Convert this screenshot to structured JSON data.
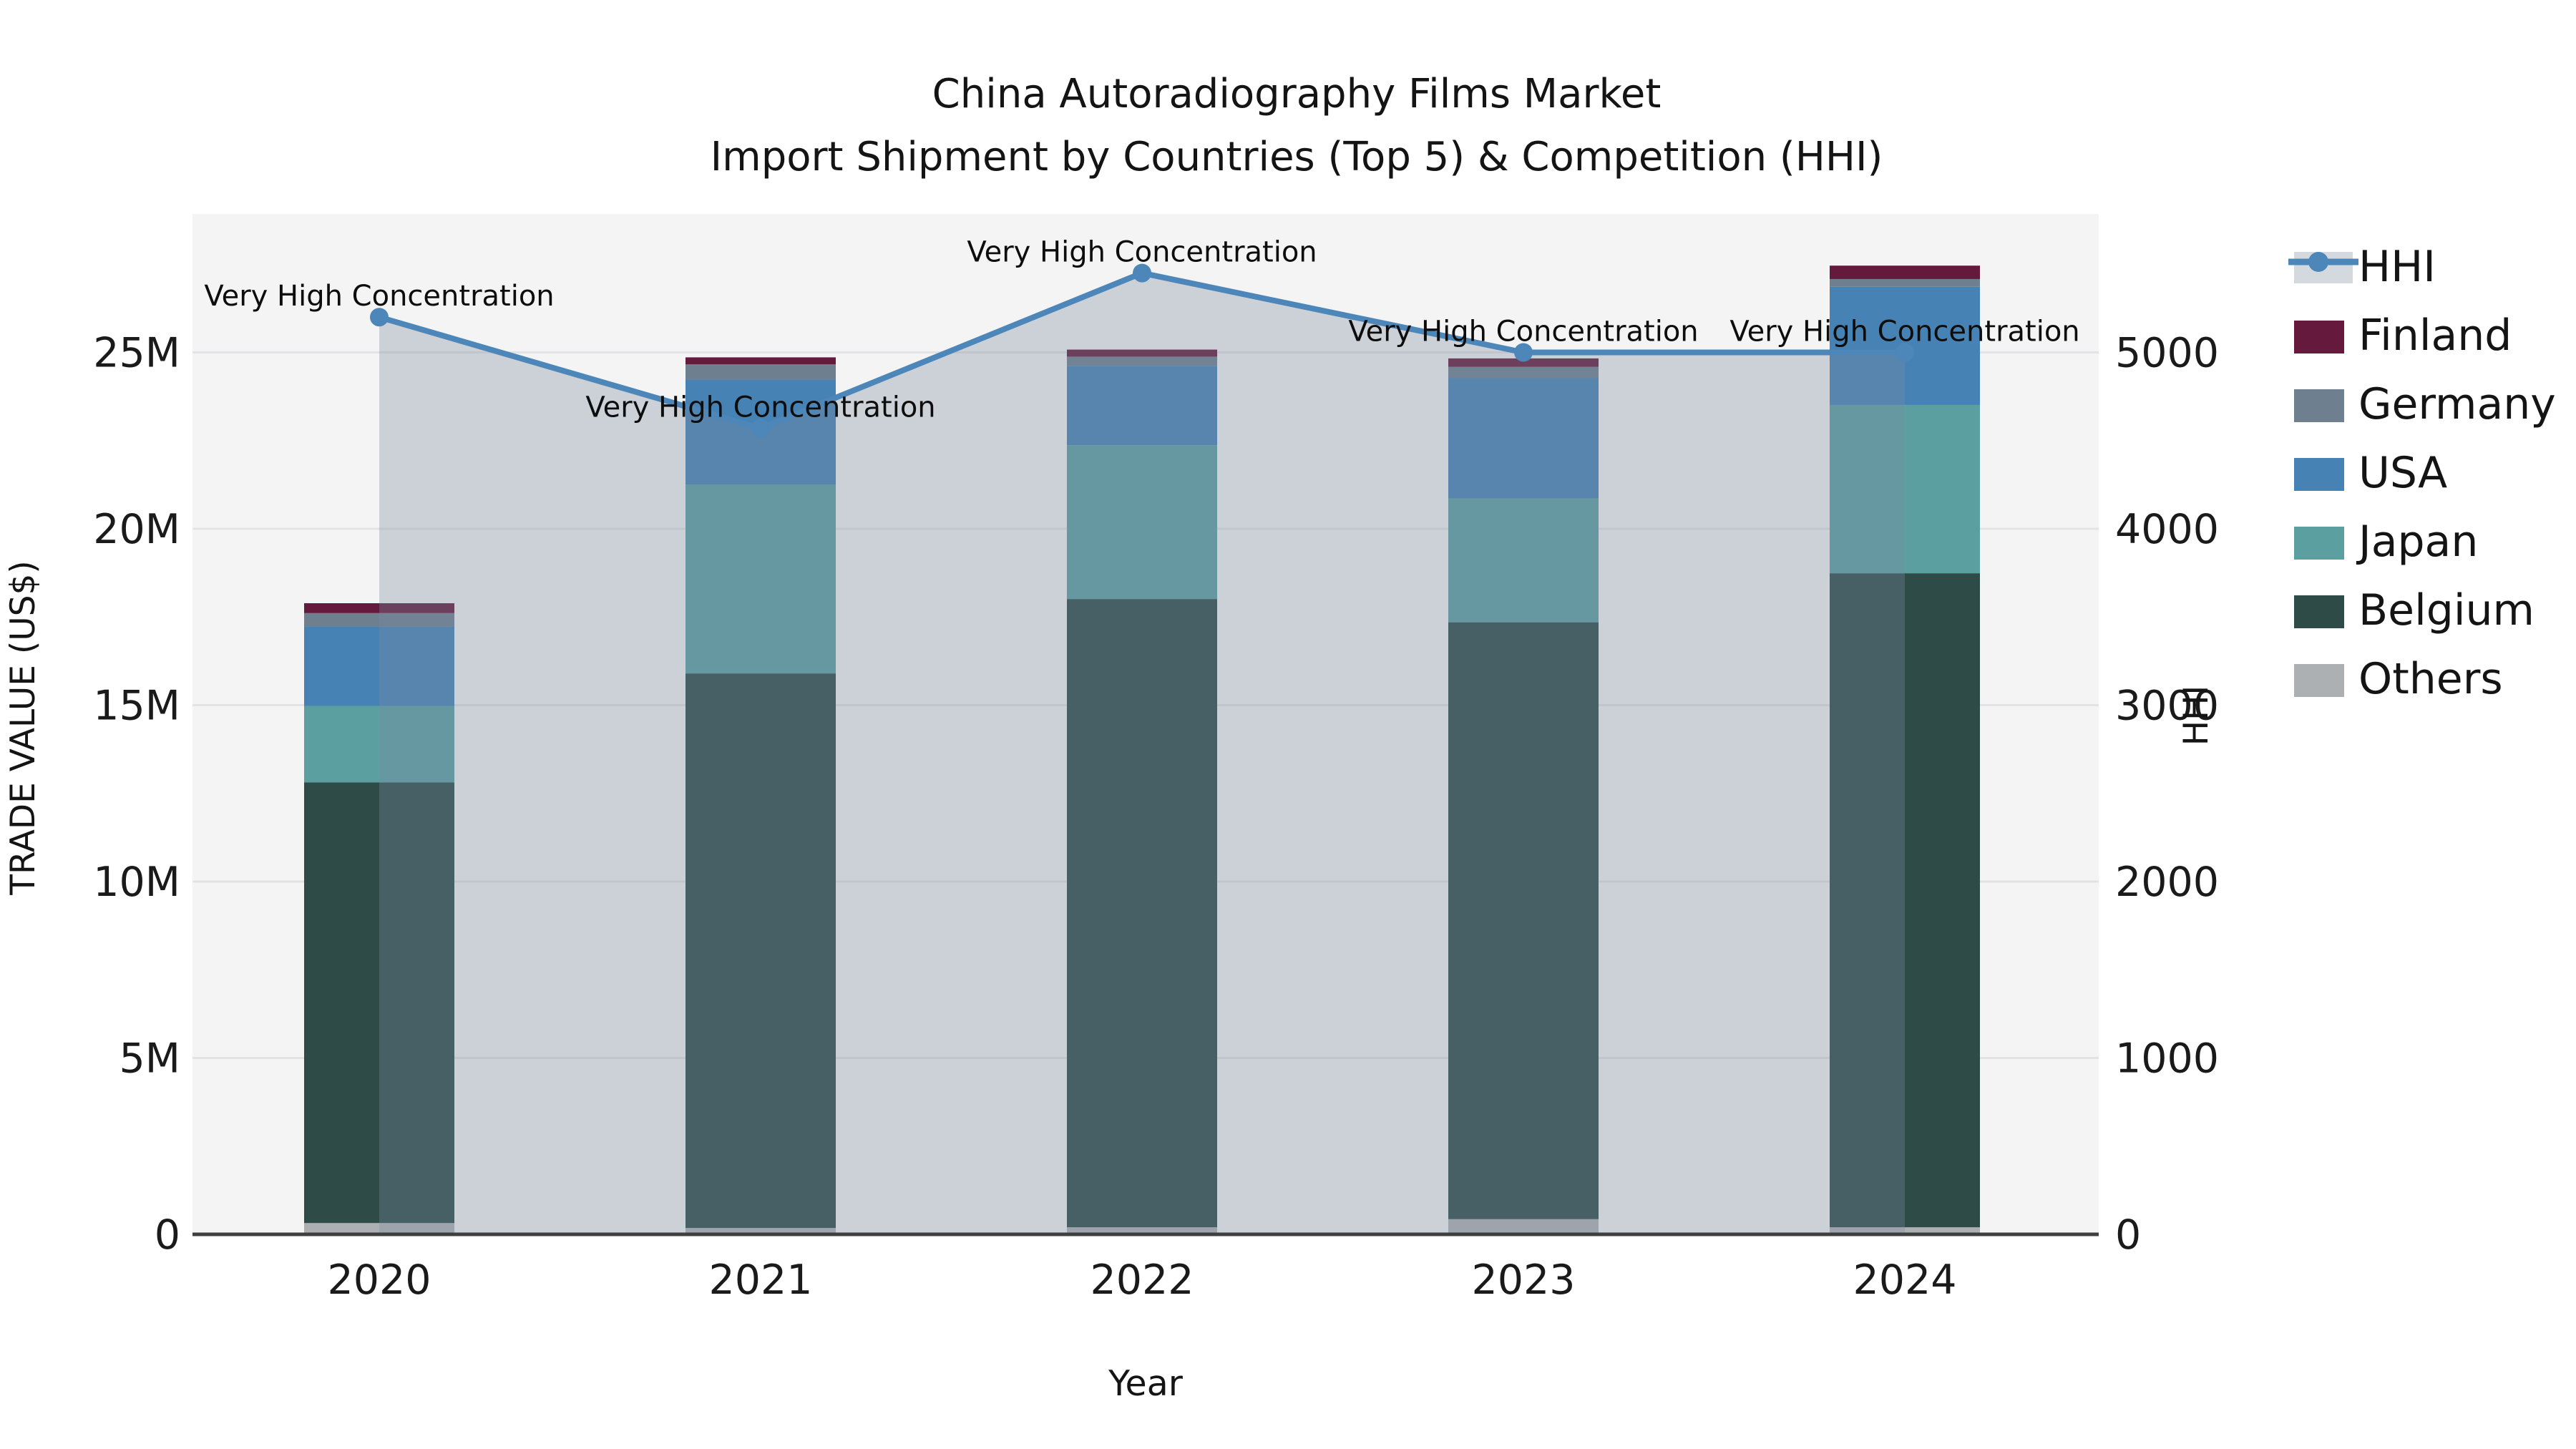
{
  "chart_data": {
    "type": "combo: stacked-bar + line-area (dual axis)",
    "title": "China Autoradiography Films Market",
    "subtitle": "Import Shipment by Countries (Top 5) & Competition (HHI)",
    "xlabel": "Year",
    "ylabel_left": "TRADE VALUE (US$)",
    "ylabel_right": "HHI",
    "categories": [
      "2020",
      "2021",
      "2022",
      "2023",
      "2024"
    ],
    "value_unit": "million US$",
    "stack_order_note": "series listed bottom-to-top of stack",
    "series": [
      {
        "name": "Others",
        "color": "#adb0b2",
        "values": [
          0.32,
          0.18,
          0.2,
          0.43,
          0.2
        ]
      },
      {
        "name": "Belgium",
        "color": "#2e4b48",
        "values": [
          12.49,
          15.72,
          17.81,
          16.92,
          18.54
        ]
      },
      {
        "name": "Japan",
        "color": "#5b9fa1",
        "values": [
          2.17,
          5.35,
          4.36,
          3.51,
          4.77
        ]
      },
      {
        "name": "USA",
        "color": "#4682b4",
        "values": [
          2.25,
          2.98,
          2.25,
          3.41,
          3.35
        ]
      },
      {
        "name": "Germany",
        "color": "#6e7f90",
        "values": [
          0.38,
          0.43,
          0.26,
          0.32,
          0.22
        ]
      },
      {
        "name": "Finland",
        "color": "#651a3d",
        "values": [
          0.28,
          0.2,
          0.2,
          0.24,
          0.38
        ]
      }
    ],
    "totals_m": [
      17.89,
      24.86,
      25.08,
      24.83,
      27.46
    ],
    "hhi": {
      "name": "HHI",
      "line_color": "#4d86b8",
      "area_fill": "rgba(125,140,160,0.33)",
      "values": [
        5200,
        4570,
        5450,
        5000,
        5000
      ]
    },
    "annotations": [
      {
        "year": "2020",
        "label": "Very High Concentration"
      },
      {
        "year": "2021",
        "label": "Very High Concentration"
      },
      {
        "year": "2022",
        "label": "Very High Concentration"
      },
      {
        "year": "2023",
        "label": "Very High Concentration"
      },
      {
        "year": "2024",
        "label": "Very High Concentration"
      }
    ],
    "y_left": {
      "ticks": [
        "0",
        "5M",
        "10M",
        "15M",
        "20M",
        "25M"
      ],
      "lim_m": [
        0,
        29.0
      ]
    },
    "y_right": {
      "ticks": [
        "0",
        "1000",
        "2000",
        "3000",
        "4000",
        "5000"
      ],
      "lim": [
        0,
        5800
      ]
    },
    "legend": {
      "position": "right",
      "items": [
        "HHI",
        "Finland",
        "Germany",
        "USA",
        "Japan",
        "Belgium",
        "Others"
      ]
    },
    "grid": true
  },
  "colors": {
    "plot_bg": "#f4f4f4",
    "grid": "#e3e3e5",
    "axis_line": "#3f3f3f",
    "legend_hhi_swatch": "rgba(125,140,160,0.33)"
  }
}
